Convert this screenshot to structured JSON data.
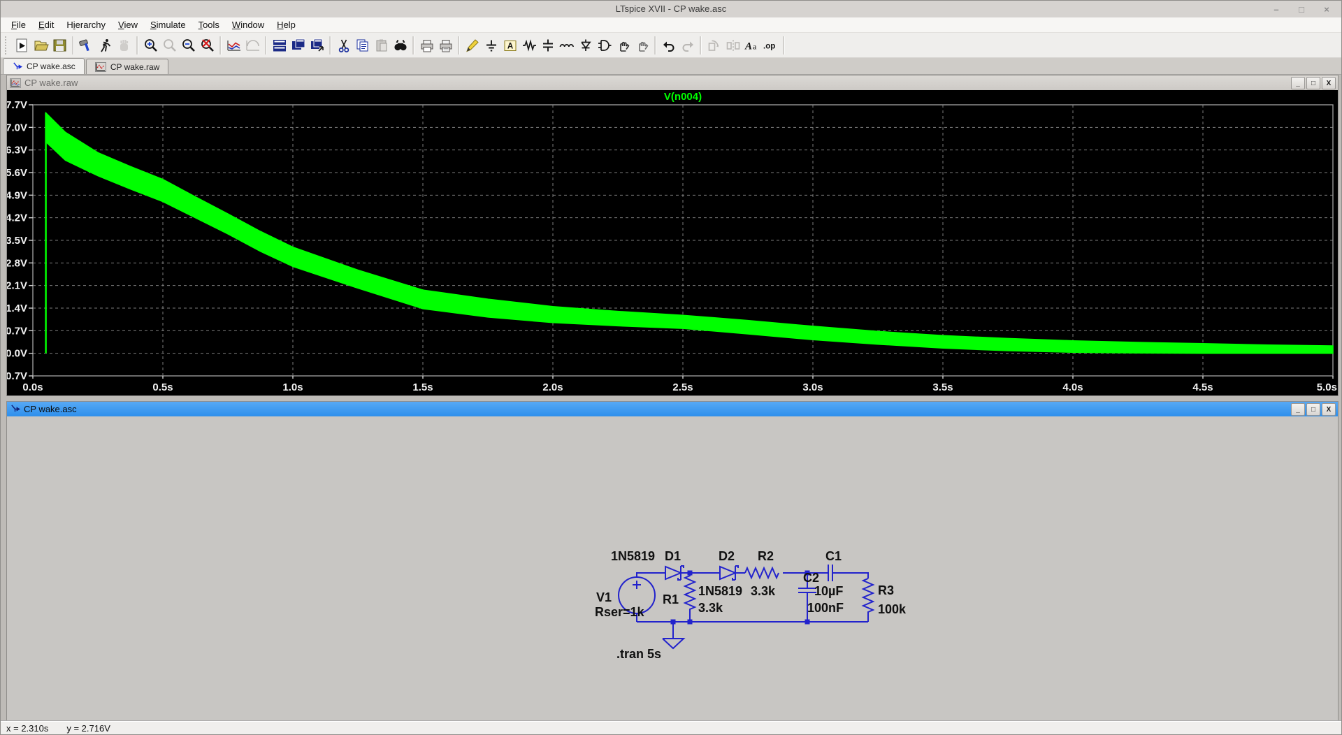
{
  "window": {
    "title": "LTspice XVII - CP wake.asc",
    "controls": {
      "minimize": "–",
      "maximize": "□",
      "close": "×"
    }
  },
  "menu": {
    "items": [
      {
        "label": "File",
        "accel": "F"
      },
      {
        "label": "Edit",
        "accel": "E"
      },
      {
        "label": "Hierarchy",
        "accel": "i"
      },
      {
        "label": "View",
        "accel": "V"
      },
      {
        "label": "Simulate",
        "accel": "S"
      },
      {
        "label": "Tools",
        "accel": "T"
      },
      {
        "label": "Window",
        "accel": "W"
      },
      {
        "label": "Help",
        "accel": "H"
      }
    ]
  },
  "toolbar": {
    "icons": [
      "new-schematic",
      "open",
      "save",
      "sep",
      "control-panel",
      "run",
      "halt",
      "sep",
      "zoom-in",
      "zoom-back",
      "zoom-out",
      "zoom-full",
      "sep",
      "autorange",
      "plot-settings",
      "sep",
      "tile-horizontal",
      "tile-vertical",
      "cascade",
      "sep",
      "cut",
      "copy",
      "paste",
      "find",
      "sep",
      "print",
      "print-preview",
      "sep",
      "wire",
      "ground",
      "net-label",
      "resistor",
      "capacitor",
      "inductor",
      "diode",
      "component",
      "move",
      "drag",
      "sep",
      "undo",
      "redo",
      "sep",
      "rotate",
      "mirror",
      "text",
      "spice-directive",
      "sep"
    ]
  },
  "tabs": [
    {
      "label": "CP wake.asc",
      "icon": "schematic-icon",
      "active": true
    },
    {
      "label": "CP wake.raw",
      "icon": "waveform-icon",
      "active": false
    }
  ],
  "wave_window": {
    "caption": "CP wake.raw",
    "icon": "waveform-icon",
    "buttons": {
      "minimize": "_",
      "maximize": "□",
      "close": "X"
    }
  },
  "chart_data": {
    "type": "area",
    "title": "V(n004)",
    "trace_name": "V(n004)",
    "trace_color": "#00FF00",
    "background": "#000000",
    "grid": "dashed",
    "xlim": [
      0,
      5
    ],
    "ylim": [
      -0.7,
      7.7
    ],
    "x_ticks": [
      "0.0s",
      "0.5s",
      "1.0s",
      "1.5s",
      "2.0s",
      "2.5s",
      "3.0s",
      "3.5s",
      "4.0s",
      "4.5s",
      "5.0s"
    ],
    "x_tick_values": [
      0,
      0.5,
      1,
      1.5,
      2,
      2.5,
      3,
      3.5,
      4,
      4.5,
      5
    ],
    "y_ticks": [
      "7.7V",
      "7.0V",
      "6.3V",
      "5.6V",
      "4.9V",
      "4.2V",
      "3.5V",
      "2.8V",
      "2.1V",
      "1.4V",
      "0.7V",
      "0.0V",
      "-0.7V"
    ],
    "y_tick_values": [
      7.7,
      7.0,
      6.3,
      5.6,
      4.9,
      4.2,
      3.5,
      2.8,
      2.1,
      1.4,
      0.7,
      0.0,
      -0.7
    ],
    "rise": {
      "t": 0.05,
      "from": 0,
      "to": 7.45
    },
    "series": [
      {
        "name": "V(n004)",
        "envelope_top": [
          [
            0.05,
            7.45
          ],
          [
            0.125,
            6.85
          ],
          [
            0.25,
            6.22
          ],
          [
            0.375,
            5.79
          ],
          [
            0.5,
            5.39
          ],
          [
            0.625,
            4.85
          ],
          [
            0.75,
            4.32
          ],
          [
            0.875,
            3.78
          ],
          [
            1.0,
            3.29
          ],
          [
            1.25,
            2.58
          ],
          [
            1.5,
            1.96
          ],
          [
            1.75,
            1.68
          ],
          [
            2.0,
            1.45
          ],
          [
            2.25,
            1.3
          ],
          [
            2.5,
            1.18
          ],
          [
            2.75,
            1.02
          ],
          [
            3.0,
            0.84
          ],
          [
            3.25,
            0.68
          ],
          [
            3.5,
            0.55
          ],
          [
            3.75,
            0.46
          ],
          [
            4.0,
            0.39
          ],
          [
            4.25,
            0.34
          ],
          [
            4.5,
            0.3
          ],
          [
            4.75,
            0.26
          ],
          [
            5.0,
            0.23
          ]
        ],
        "envelope_bottom": [
          [
            0.05,
            6.55
          ],
          [
            0.125,
            5.98
          ],
          [
            0.25,
            5.5
          ],
          [
            0.375,
            5.09
          ],
          [
            0.5,
            4.7
          ],
          [
            0.625,
            4.2
          ],
          [
            0.75,
            3.7
          ],
          [
            0.875,
            3.16
          ],
          [
            1.0,
            2.69
          ],
          [
            1.25,
            2.02
          ],
          [
            1.5,
            1.38
          ],
          [
            1.75,
            1.12
          ],
          [
            2.0,
            0.95
          ],
          [
            2.25,
            0.85
          ],
          [
            2.5,
            0.77
          ],
          [
            2.75,
            0.6
          ],
          [
            3.0,
            0.42
          ],
          [
            3.25,
            0.28
          ],
          [
            3.5,
            0.16
          ],
          [
            3.75,
            0.08
          ],
          [
            4.0,
            0.03
          ],
          [
            4.25,
            0.01
          ],
          [
            4.5,
            0.0
          ],
          [
            4.75,
            0.0
          ],
          [
            5.0,
            0.0
          ]
        ]
      }
    ]
  },
  "schematic_window": {
    "caption": "CP wake.asc",
    "icon": "schematic-icon",
    "buttons": {
      "minimize": "_",
      "maximize": "□",
      "close": "X"
    },
    "components": [
      {
        "ref": "V1",
        "value": "Rser=1k"
      },
      {
        "ref": "D1",
        "value": "1N5819"
      },
      {
        "ref": "D2",
        "value": "1N5819"
      },
      {
        "ref": "R1",
        "value": "3.3k"
      },
      {
        "ref": "R2",
        "value": "3.3k"
      },
      {
        "ref": "R3",
        "value": "100k"
      },
      {
        "ref": "C1",
        "value": "10µF"
      },
      {
        "ref": "C2",
        "value": "100nF"
      }
    ],
    "labels": {
      "d1_value": "1N5819",
      "d1_ref": "D1",
      "d2_ref": "D2",
      "d2_value": "1N5819",
      "r2_ref": "R2",
      "r2_value": "3.3k",
      "c1_ref": "C1",
      "c1_value": "10µF",
      "c2_ref": "C2",
      "c2_value": "100nF",
      "v1_ref": "V1",
      "v1_value": "Rser=1k",
      "r1_ref": "R1",
      "r1_value": "3.3k",
      "r3_ref": "R3",
      "r3_value": "100k",
      "directive": ".tran 5s"
    },
    "wire_color": "#2222CC"
  },
  "status_bar": {
    "x_readout": "x = 2.310s",
    "y_readout": "y = 2.716V"
  }
}
